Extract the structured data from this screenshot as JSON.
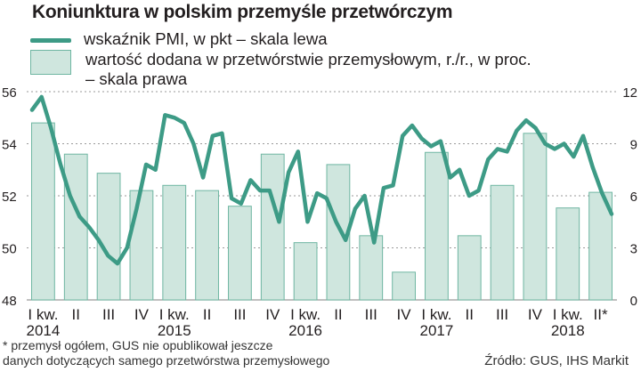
{
  "title": "Koniunktura w polskim przemyśle przetwórczym",
  "legend": {
    "line_label": "wskaźnik PMI, w pkt – skala lewa",
    "bar_label_line1": "wartość dodana w przetwórstwie przemysłowym, r./r., w proc.",
    "bar_label_line2": "– skala prawa"
  },
  "footnote": {
    "line1": "* przemysł ogółem, GUS nie opublikował jeszcze",
    "line2": "danych dotyczących samego przetwórstwa przemysłowego"
  },
  "source": "Źródło: GUS, IHS Markit",
  "colors": {
    "line": "#3d9b86",
    "bar_fill": "#cfe6de",
    "bar_stroke": "#6fb6a2",
    "grid": "#9a9a9a"
  },
  "chart_data": {
    "type": "bar+line",
    "title": "Koniunktura w polskim przemyśle przetwórczym",
    "quarters": [
      "I kw.",
      "II",
      "III",
      "IV",
      "I kw.",
      "II",
      "III",
      "IV",
      "I kw.",
      "II",
      "III",
      "IV",
      "I kw.",
      "II",
      "III",
      "IV",
      "I kw.",
      "II*"
    ],
    "years": [
      {
        "label": "2014",
        "quarter_index": 0
      },
      {
        "label": "2015",
        "quarter_index": 4
      },
      {
        "label": "2016",
        "quarter_index": 8
      },
      {
        "label": "2017",
        "quarter_index": 12
      },
      {
        "label": "2018",
        "quarter_index": 16
      }
    ],
    "bar_series": {
      "name": "wartość dodana w przetwórstwie przemysłowym, r./r., w proc.",
      "axis": "right",
      "values": [
        10.2,
        8.4,
        7.3,
        6.3,
        6.6,
        6.3,
        5.4,
        8.4,
        3.3,
        7.8,
        3.7,
        1.6,
        8.5,
        3.7,
        6.6,
        9.6,
        5.3,
        6.2
      ]
    },
    "line_series": {
      "name": "wskaźnik PMI, w pkt",
      "axis": "left",
      "values": [
        55.3,
        55.8,
        54.6,
        53.2,
        52.0,
        51.2,
        50.8,
        50.3,
        49.7,
        49.4,
        50.0,
        51.5,
        53.2,
        53.0,
        55.1,
        55.0,
        54.8,
        54.0,
        52.7,
        54.3,
        54.4,
        51.9,
        51.7,
        52.6,
        52.2,
        52.2,
        51.0,
        52.9,
        53.7,
        51.0,
        52.1,
        51.9,
        51.0,
        50.3,
        51.5,
        52.0,
        50.2,
        52.3,
        52.4,
        54.3,
        54.7,
        54.2,
        53.9,
        54.1,
        52.7,
        53.0,
        52.0,
        52.2,
        53.4,
        53.8,
        53.7,
        54.5,
        54.9,
        54.6,
        54.0,
        53.8,
        54.0,
        53.5,
        54.3,
        53.1,
        52.1,
        51.3
      ]
    },
    "left_axis": {
      "min": 48,
      "max": 56,
      "ticks": [
        48,
        50,
        52,
        54,
        56
      ]
    },
    "right_axis": {
      "min": 0,
      "max": 12,
      "ticks": [
        0,
        3,
        6,
        9,
        12
      ]
    }
  }
}
